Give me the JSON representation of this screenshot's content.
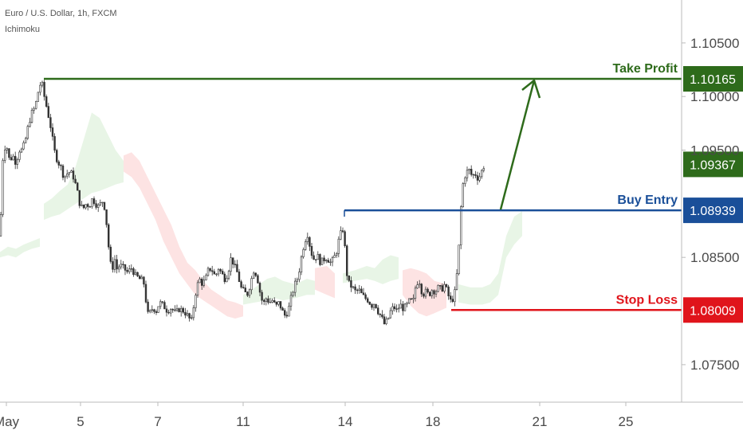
{
  "legend": {
    "symbol": "Euro / U.S. Dollar, 1h, FXCM",
    "indicator": "Ichimoku"
  },
  "colors": {
    "take_profit": "#2e6b1b",
    "buy_entry": "#1a4f99",
    "stop_loss": "#e0141b",
    "current_price": "#2e6b1b",
    "candle": "#333333",
    "cloud_bull": "#e8f5e6",
    "cloud_bear": "#fde3e3",
    "axis_line": "#bbbbbb",
    "axis_text": "#4a4a4a"
  },
  "chart_data": {
    "type": "candlestick",
    "title": "Euro / U.S. Dollar, 1h, FXCM",
    "indicator": "Ichimoku",
    "x_ticks": [
      "May",
      "5",
      "7",
      "11",
      "14",
      "18",
      "21",
      "25"
    ],
    "y_ticks": [
      "1.10500",
      "1.10000",
      "1.09500",
      "1.08500",
      "1.07500"
    ],
    "ylim": [
      1.0715,
      1.109
    ],
    "grid": false,
    "levels": [
      {
        "name": "Take Profit",
        "value": 1.10165,
        "badge": "1.10165"
      },
      {
        "name": "Buy Entry",
        "value": 1.08939,
        "badge": "1.08939"
      },
      {
        "name": "Stop Loss",
        "value": 1.08009,
        "badge": "1.08009"
      }
    ],
    "current_price": {
      "value": 1.09367,
      "badge": "1.09367"
    },
    "price_path": [
      [
        0,
        1.087
      ],
      [
        4,
        1.095
      ],
      [
        8,
        1.0955
      ],
      [
        12,
        1.094
      ],
      [
        16,
        1.0945
      ],
      [
        20,
        1.0938
      ],
      [
        24,
        1.095
      ],
      [
        28,
        1.095
      ],
      [
        32,
        1.096
      ],
      [
        36,
        1.0975
      ],
      [
        40,
        1.0985
      ],
      [
        44,
        1.099
      ],
      [
        48,
        1.1005
      ],
      [
        52,
        1.1015
      ],
      [
        55,
        1.1002
      ],
      [
        60,
        1.0985
      ],
      [
        64,
        1.097
      ],
      [
        68,
        1.095
      ],
      [
        72,
        1.094
      ],
      [
        76,
        1.0935
      ],
      [
        80,
        1.0925
      ],
      [
        84,
        1.0928
      ],
      [
        88,
        1.093
      ],
      [
        92,
        1.0925
      ],
      [
        96,
        1.0915
      ],
      [
        100,
        1.09
      ],
      [
        104,
        1.0895
      ],
      [
        108,
        1.09
      ],
      [
        112,
        1.0898
      ],
      [
        116,
        1.0905
      ],
      [
        120,
        1.09
      ],
      [
        124,
        1.0897
      ],
      [
        128,
        1.0903
      ],
      [
        132,
        1.0895
      ],
      [
        135,
        1.087
      ],
      [
        138,
        1.0845
      ],
      [
        141,
        1.084
      ],
      [
        144,
        1.0848
      ],
      [
        147,
        1.0838
      ],
      [
        150,
        1.0843
      ],
      [
        155,
        1.084
      ],
      [
        160,
        1.0836
      ],
      [
        165,
        1.084
      ],
      [
        170,
        1.0833
      ],
      [
        175,
        1.083
      ],
      [
        180,
        1.0828
      ],
      [
        183,
        1.081
      ],
      [
        186,
        1.0795
      ],
      [
        189,
        1.08
      ],
      [
        192,
        1.0803
      ],
      [
        196,
        1.08
      ],
      [
        200,
        1.0808
      ],
      [
        205,
        1.0805
      ],
      [
        210,
        1.08
      ],
      [
        215,
        1.0803
      ],
      [
        220,
        1.0798
      ],
      [
        225,
        1.0802
      ],
      [
        230,
        1.08
      ],
      [
        235,
        1.0796
      ],
      [
        240,
        1.079
      ],
      [
        242,
        1.08
      ],
      [
        246,
        1.082
      ],
      [
        250,
        1.083
      ],
      [
        254,
        1.0825
      ],
      [
        258,
        1.083
      ],
      [
        262,
        1.084
      ],
      [
        266,
        1.0838
      ],
      [
        270,
        1.0832
      ],
      [
        274,
        1.084
      ],
      [
        278,
        1.0835
      ],
      [
        282,
        1.083
      ],
      [
        286,
        1.0836
      ],
      [
        290,
        1.085
      ],
      [
        294,
        1.0842
      ],
      [
        298,
        1.0835
      ],
      [
        302,
        1.0822
      ],
      [
        306,
        1.0818
      ],
      [
        310,
        1.0815
      ],
      [
        314,
        1.0825
      ],
      [
        318,
        1.0838
      ],
      [
        322,
        1.0834
      ],
      [
        326,
        1.0818
      ],
      [
        330,
        1.0806
      ],
      [
        334,
        1.0812
      ],
      [
        338,
        1.0808
      ],
      [
        342,
        1.081
      ],
      [
        346,
        1.0804
      ],
      [
        350,
        1.0808
      ],
      [
        354,
        1.08
      ],
      [
        358,
        1.0795
      ],
      [
        362,
        1.0802
      ],
      [
        366,
        1.0815
      ],
      [
        370,
        1.0825
      ],
      [
        374,
        1.0832
      ],
      [
        378,
        1.085
      ],
      [
        382,
        1.0865
      ],
      [
        386,
        1.0872
      ],
      [
        390,
        1.0855
      ],
      [
        394,
        1.0848
      ],
      [
        398,
        1.0852
      ],
      [
        402,
        1.0845
      ],
      [
        406,
        1.0848
      ],
      [
        410,
        1.085
      ],
      [
        414,
        1.0845
      ],
      [
        418,
        1.0848
      ],
      [
        422,
        1.0855
      ],
      [
        426,
        1.087
      ],
      [
        430,
        1.0876
      ],
      [
        432,
        1.0865
      ],
      [
        435,
        1.0835
      ],
      [
        438,
        1.0825
      ],
      [
        442,
        1.0822
      ],
      [
        446,
        1.0818
      ],
      [
        450,
        1.082
      ],
      [
        454,
        1.0815
      ],
      [
        458,
        1.0812
      ],
      [
        462,
        1.081
      ],
      [
        466,
        1.0805
      ],
      [
        470,
        1.0808
      ],
      [
        474,
        1.08
      ],
      [
        478,
        1.0795
      ],
      [
        482,
        1.0788
      ],
      [
        486,
        1.0791
      ],
      [
        490,
        1.08
      ],
      [
        494,
        1.0804
      ],
      [
        498,
        1.08
      ],
      [
        502,
        1.0806
      ],
      [
        506,
        1.0802
      ],
      [
        510,
        1.0805
      ],
      [
        514,
        1.081
      ],
      [
        518,
        1.0808
      ],
      [
        522,
        1.0826
      ],
      [
        526,
        1.0828
      ],
      [
        530,
        1.0815
      ],
      [
        534,
        1.0818
      ],
      [
        538,
        1.0815
      ],
      [
        542,
        1.082
      ],
      [
        546,
        1.0818
      ],
      [
        550,
        1.0822
      ],
      [
        554,
        1.082
      ],
      [
        558,
        1.0825
      ],
      [
        562,
        1.0815
      ],
      [
        566,
        1.0808
      ],
      [
        570,
        1.0815
      ],
      [
        574,
        1.084
      ],
      [
        576,
        1.0865
      ],
      [
        578,
        1.0895
      ],
      [
        581,
        1.092
      ],
      [
        584,
        1.0928
      ],
      [
        588,
        1.0932
      ],
      [
        592,
        1.0926
      ],
      [
        596,
        1.0928
      ],
      [
        600,
        1.0923
      ],
      [
        604,
        1.093
      ],
      [
        608,
        1.0937
      ]
    ],
    "cloud": [
      {
        "kind": "bull",
        "points": [
          [
            0,
            1.0855
          ],
          [
            10,
            1.086
          ],
          [
            20,
            1.0858
          ],
          [
            30,
            1.0862
          ],
          [
            40,
            1.0865
          ],
          [
            50,
            1.0868
          ],
          [
            50,
            1.086
          ],
          [
            40,
            1.0858
          ],
          [
            30,
            1.0855
          ],
          [
            20,
            1.085
          ],
          [
            10,
            1.0852
          ],
          [
            0,
            1.085
          ]
        ]
      },
      {
        "kind": "bull",
        "points": [
          [
            55,
            1.09
          ],
          [
            65,
            1.0905
          ],
          [
            75,
            1.0912
          ],
          [
            85,
            1.0918
          ],
          [
            95,
            1.0935
          ],
          [
            105,
            1.096
          ],
          [
            115,
            1.0985
          ],
          [
            125,
            1.098
          ],
          [
            135,
            1.0965
          ],
          [
            145,
            1.095
          ],
          [
            155,
            1.094
          ],
          [
            155,
            1.092
          ],
          [
            145,
            1.0918
          ],
          [
            135,
            1.0915
          ],
          [
            125,
            1.0912
          ],
          [
            115,
            1.091
          ],
          [
            105,
            1.0905
          ],
          [
            95,
            1.09
          ],
          [
            85,
            1.0895
          ],
          [
            75,
            1.089
          ],
          [
            65,
            1.0888
          ],
          [
            55,
            1.0885
          ]
        ]
      },
      {
        "kind": "bear",
        "points": [
          [
            155,
            1.0945
          ],
          [
            165,
            1.0948
          ],
          [
            175,
            1.094
          ],
          [
            185,
            1.0925
          ],
          [
            195,
            1.091
          ],
          [
            205,
            1.0895
          ],
          [
            215,
            1.088
          ],
          [
            225,
            1.086
          ],
          [
            235,
            1.0845
          ],
          [
            245,
            1.0838
          ],
          [
            255,
            1.0828
          ],
          [
            265,
            1.082
          ],
          [
            275,
            1.0815
          ],
          [
            285,
            1.081
          ],
          [
            295,
            1.0808
          ],
          [
            305,
            1.0805
          ],
          [
            305,
            1.0795
          ],
          [
            295,
            1.0793
          ],
          [
            285,
            1.0795
          ],
          [
            275,
            1.08
          ],
          [
            265,
            1.0805
          ],
          [
            255,
            1.081
          ],
          [
            245,
            1.0815
          ],
          [
            235,
            1.0825
          ],
          [
            225,
            1.0835
          ],
          [
            215,
            1.085
          ],
          [
            205,
            1.0865
          ],
          [
            195,
            1.0885
          ],
          [
            185,
            1.09
          ],
          [
            175,
            1.0915
          ],
          [
            165,
            1.0925
          ],
          [
            155,
            1.093
          ]
        ]
      },
      {
        "kind": "bull",
        "points": [
          [
            305,
            1.0815
          ],
          [
            320,
            1.0822
          ],
          [
            335,
            1.083
          ],
          [
            345,
            1.0832
          ],
          [
            355,
            1.0828
          ],
          [
            370,
            1.0825
          ],
          [
            385,
            1.083
          ],
          [
            395,
            1.0828
          ],
          [
            395,
            1.0815
          ],
          [
            385,
            1.0815
          ],
          [
            370,
            1.0812
          ],
          [
            355,
            1.081
          ],
          [
            345,
            1.0812
          ],
          [
            335,
            1.081
          ],
          [
            320,
            1.0808
          ],
          [
            305,
            1.0806
          ]
        ]
      },
      {
        "kind": "bear",
        "points": [
          [
            395,
            1.084
          ],
          [
            410,
            1.0842
          ],
          [
            420,
            1.0835
          ],
          [
            420,
            1.0812
          ],
          [
            410,
            1.0815
          ],
          [
            395,
            1.082
          ]
        ]
      },
      {
        "kind": "bull",
        "points": [
          [
            430,
            1.0835
          ],
          [
            445,
            1.0838
          ],
          [
            460,
            1.0842
          ],
          [
            470,
            1.084
          ],
          [
            480,
            1.0848
          ],
          [
            490,
            1.0852
          ],
          [
            500,
            1.085
          ],
          [
            500,
            1.083
          ],
          [
            490,
            1.0828
          ],
          [
            480,
            1.0825
          ],
          [
            470,
            1.0828
          ],
          [
            460,
            1.083
          ],
          [
            445,
            1.0828
          ],
          [
            430,
            1.0826
          ]
        ]
      },
      {
        "kind": "bear",
        "points": [
          [
            505,
            1.0838
          ],
          [
            515,
            1.084
          ],
          [
            525,
            1.0838
          ],
          [
            535,
            1.0835
          ],
          [
            545,
            1.0828
          ],
          [
            560,
            1.0825
          ],
          [
            560,
            1.0803
          ],
          [
            545,
            1.0798
          ],
          [
            535,
            1.0795
          ],
          [
            525,
            1.0798
          ],
          [
            515,
            1.0805
          ],
          [
            505,
            1.0815
          ]
        ]
      },
      {
        "kind": "bull",
        "points": [
          [
            575,
            1.0825
          ],
          [
            590,
            1.0822
          ],
          [
            605,
            1.0822
          ],
          [
            615,
            1.0825
          ],
          [
            625,
            1.0835
          ],
          [
            635,
            1.087
          ],
          [
            645,
            1.0888
          ],
          [
            655,
            1.0893
          ],
          [
            655,
            1.087
          ],
          [
            645,
            1.0862
          ],
          [
            635,
            1.085
          ],
          [
            625,
            1.0815
          ],
          [
            615,
            1.0808
          ],
          [
            605,
            1.0806
          ],
          [
            590,
            1.0806
          ],
          [
            575,
            1.0808
          ]
        ]
      }
    ]
  }
}
